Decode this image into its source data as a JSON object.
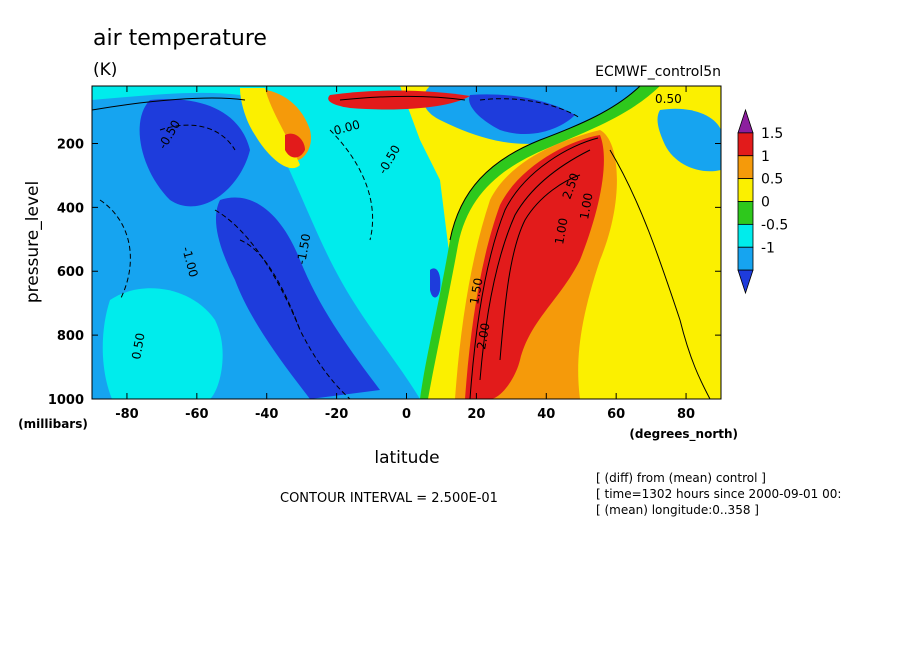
{
  "chart_data": {
    "type": "heatmap",
    "title": "air temperature",
    "units": "(K)",
    "dataset": "ECMWF_control5n",
    "xlabel": "latitude",
    "xunits": "(degrees_north)",
    "ylabel": "pressure_level",
    "yunits": "(millibars)",
    "xlim": [
      -90,
      90
    ],
    "ylim": [
      1000,
      20
    ],
    "y_inverted": true,
    "x_ticks": [
      -80,
      -60,
      -40,
      -20,
      0,
      20,
      40,
      60,
      80
    ],
    "y_ticks": [
      200,
      400,
      600,
      800,
      1000
    ],
    "colorbar": {
      "labels": [
        "1.5",
        "1",
        "0.5",
        "0",
        "-0.5",
        "-1"
      ],
      "values": [
        1.5,
        1,
        0.5,
        0,
        -0.5,
        -1
      ],
      "colors": [
        "#8c1f9e",
        "#e21b1b",
        "#f59a0a",
        "#fbf000",
        "#2ec81c",
        "#00ecec",
        "#16a4f0",
        "#1e3cdc"
      ]
    },
    "contour_interval": "CONTOUR INTERVAL = 2.500E-01",
    "notes": [
      "[ (diff) from (mean) control ]",
      "[ time=1302 hours since 2000-09-01 00:",
      "[ (mean) longitude:0..358 ]"
    ],
    "contour_labels": [
      "0.50",
      "-0.50",
      "-1.00",
      "-1.50",
      "2.00",
      "1.50",
      "1.00",
      "-0.50",
      "0.00",
      "2.50",
      "1.00",
      "0.50"
    ]
  }
}
